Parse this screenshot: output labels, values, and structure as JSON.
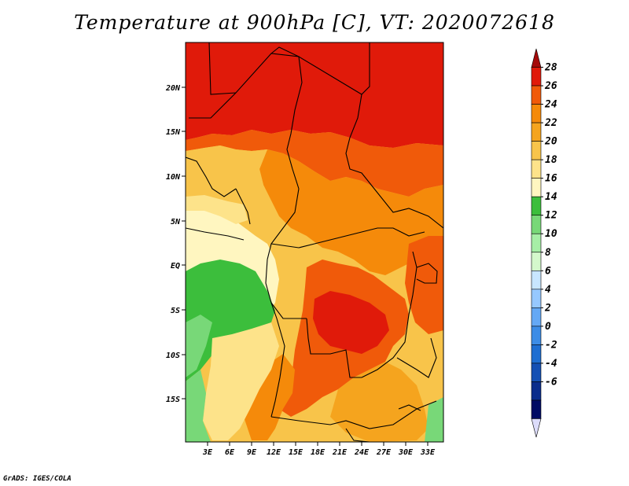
{
  "title": "Temperature at 900hPa [C], VT: 2020072618",
  "credit": "GrADS: IGES/COLA",
  "map": {
    "lon_labels": [
      "3E",
      "6E",
      "9E",
      "12E",
      "15E",
      "18E",
      "21E",
      "24E",
      "27E",
      "30E",
      "33E"
    ],
    "lat_labels": [
      "20N",
      "15N",
      "10N",
      "5N",
      "EQ",
      "5S",
      "10S",
      "15S"
    ]
  },
  "colorbar": {
    "levels": [
      "28",
      "26",
      "24",
      "22",
      "20",
      "18",
      "16",
      "14",
      "12",
      "10",
      "8",
      "6",
      "4",
      "2",
      "0",
      "-2",
      "-4",
      "-6"
    ],
    "colors": [
      "#a50a0a",
      "#e01a0a",
      "#f05a0a",
      "#f58a0a",
      "#f5a41e",
      "#f8c44a",
      "#fde38a",
      "#fff6c0",
      "#3cbe3c",
      "#78d878",
      "#a6eea6",
      "#d4f8cc",
      "#c8e6ff",
      "#96c8ff",
      "#64a8f5",
      "#3c8ce6",
      "#1e6ed2",
      "#1450b4",
      "#0a2d8c",
      "#000a64",
      "#dcdcfa"
    ]
  },
  "colors": {
    "fill_28plus": "#e01a0a",
    "fill_26": "#f05a0a",
    "fill_24": "#f58a0a",
    "fill_22": "#f5a41e",
    "fill_20": "#f8c44a",
    "fill_18": "#fde38a",
    "fill_16": "#fff6c0",
    "fill_14": "#3cbe3c",
    "fill_12": "#78d878",
    "fill_10": "#a6eea6"
  }
}
